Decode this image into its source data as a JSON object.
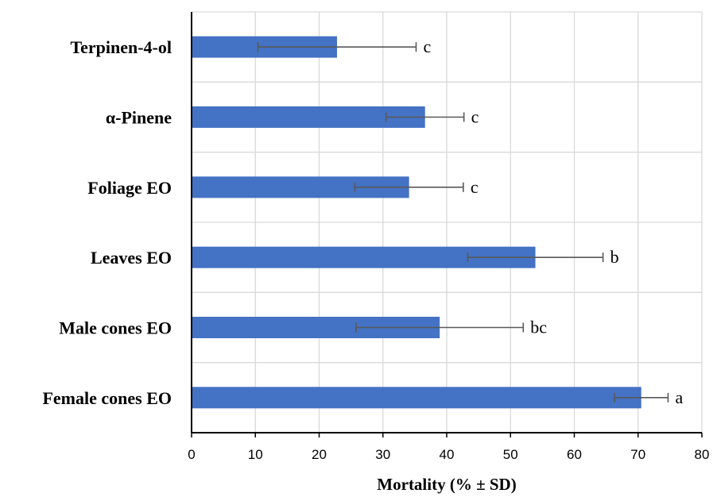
{
  "chart_data": {
    "type": "bar",
    "orientation": "horizontal",
    "categories": [
      "Terpinen-4-ol",
      "α-Pinene",
      "Foliage EO",
      "Leaves EO",
      "Male cones EO",
      "Female cones EO"
    ],
    "values": [
      22.8,
      36.6,
      34.1,
      53.9,
      38.9,
      70.5
    ],
    "errors": [
      12.4,
      6.1,
      8.5,
      10.6,
      13.1,
      4.2
    ],
    "significance": [
      "c",
      "c",
      "c",
      "b",
      "bc",
      "a"
    ],
    "xlabel": "Mortality (% ± SD)",
    "xlim": [
      0,
      80
    ],
    "xticks": [
      0,
      10,
      20,
      30,
      40,
      50,
      60,
      70,
      80
    ],
    "grid": true,
    "bar_color": "#4472C4",
    "error_color": "#595959",
    "grid_color": "#D9D9D9"
  }
}
